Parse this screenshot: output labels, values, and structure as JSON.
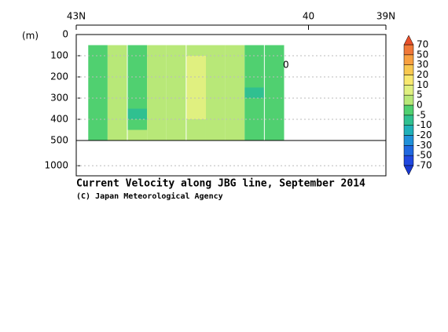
{
  "chart_data": {
    "type": "contour",
    "title": "Current Velocity along JBG line, September 2014",
    "subtitle": "(C) Japan Meteorological Agency",
    "y_label": "(m)",
    "xlim": [
      43,
      39
    ],
    "xticks": [
      {
        "value": 43,
        "label": "43N"
      },
      40,
      {
        "value": 39,
        "label": "39N"
      }
    ],
    "ylim": [
      0,
      1200
    ],
    "ybreak": 500,
    "yticks": [
      0,
      100,
      200,
      300,
      400,
      500,
      1000
    ],
    "grid": true,
    "x": [
      42.72,
      42.47,
      42.21,
      41.96,
      41.71,
      41.45,
      41.2,
      40.95,
      40.7,
      40.44
    ],
    "depths": [
      75,
      125,
      175,
      225,
      275,
      325,
      375,
      425,
      475
    ],
    "values": [
      [
        -3,
        2,
        -3,
        4,
        3,
        4,
        3,
        2,
        -4,
        -2
      ],
      [
        -3,
        2,
        -5,
        4,
        3,
        6,
        3,
        2,
        -4,
        -2
      ],
      [
        -2,
        2,
        -4,
        4,
        3,
        6,
        3,
        2,
        -5,
        -3
      ],
      [
        -2,
        3,
        -4,
        3,
        4,
        6,
        4,
        2,
        -5,
        -3
      ],
      [
        -2,
        3,
        -4,
        3,
        4,
        7,
        4,
        2,
        -6,
        -3
      ],
      [
        -2,
        2,
        -4,
        3,
        4,
        6,
        3,
        2,
        -5,
        -3
      ],
      [
        -2,
        2,
        -6,
        3,
        3,
        6,
        3,
        2,
        -4,
        -3
      ],
      [
        -2,
        2,
        -5,
        3,
        3,
        4,
        3,
        2,
        -4,
        -3
      ],
      [
        -2,
        2,
        2,
        3,
        3,
        3,
        3,
        2,
        -3,
        -2
      ]
    ],
    "levels": [
      -70,
      -50,
      -30,
      -20,
      -10,
      -5,
      0,
      5,
      10,
      20,
      30,
      50,
      70
    ],
    "band_colors": [
      "#1838d0",
      "#2048e0",
      "#2068e0",
      "#2090d8",
      "#20b0b8",
      "#30c090",
      "#50d070",
      "#b8e878",
      "#e0f080",
      "#f8e870",
      "#f8c850",
      "#f8a040",
      "#f07838",
      "#e8502a"
    ],
    "annotations": [
      "0"
    ]
  }
}
